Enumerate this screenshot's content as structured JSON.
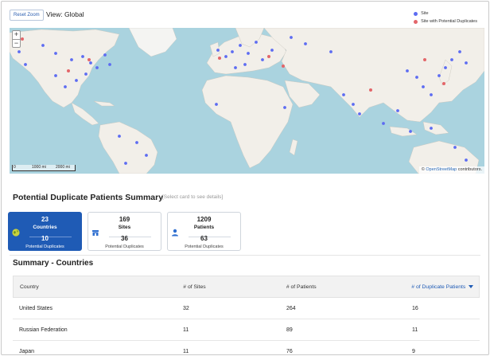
{
  "toolbar": {
    "reset_zoom_label": "Reset Zoom",
    "view_label": "View: Global"
  },
  "legend": {
    "items": [
      {
        "label": "Site",
        "color": "#5d6cf2"
      },
      {
        "label": "Site with Potential Duplicates",
        "color": "#e3666a"
      }
    ]
  },
  "map": {
    "zoom_in": "+",
    "zoom_out": "−",
    "scale_labels": [
      "0",
      "1000 mi",
      "2000 mi"
    ],
    "attribution_symbol": "©",
    "attribution_link": "OpenStreetMap",
    "attribution_suffix": "contributors.",
    "colors": {
      "water": "#aad3df",
      "land": "#f2efe9",
      "ice": "#f8f8f8"
    }
  },
  "summary": {
    "title": "Potential Duplicate Patients Summary",
    "hint": "[Select card to see details]",
    "cards": [
      {
        "count": "23",
        "label": "Countries",
        "dup_count": "10",
        "dup_label": "Potential Duplicates",
        "icon": "globe-icon",
        "active": true
      },
      {
        "count": "169",
        "label": "Sites",
        "dup_count": "36",
        "dup_label": "Potential Duplicates",
        "icon": "store-icon",
        "active": false
      },
      {
        "count": "1209",
        "label": "Patients",
        "dup_count": "63",
        "dup_label": "Potential Duplicates",
        "icon": "person-icon",
        "active": false
      }
    ]
  },
  "countries": {
    "title": "Summary - Countries",
    "columns": [
      "Country",
      "# of Sites",
      "# of Patients",
      "# of Duplicate Patients"
    ],
    "sorted_column": 3,
    "rows": [
      [
        "United States",
        "32",
        "264",
        "16"
      ],
      [
        "Russian Federation",
        "11",
        "89",
        "11"
      ],
      [
        "Japan",
        "11",
        "76",
        "9"
      ]
    ]
  },
  "colors": {
    "accent": "#1f5bb5",
    "site": "#5d6cf2",
    "duplicate": "#e3666a"
  }
}
